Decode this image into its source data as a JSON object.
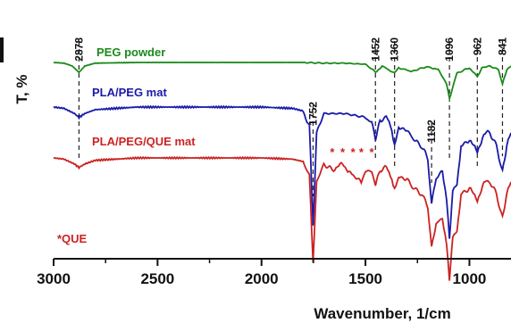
{
  "chart_data": {
    "type": "line",
    "title": "",
    "xlabel": "Wavenumber, 1/cm",
    "ylabel": "T, %",
    "xlim": [
      3000,
      800
    ],
    "x_reversed": true,
    "y_ticks_shown": false,
    "grid": false,
    "x_ticks": [
      3000,
      2500,
      2000,
      1500,
      1000
    ],
    "x_tick_labels": [
      "3000",
      "2500",
      "2000",
      "1500",
      "1000"
    ],
    "peak_markers": [
      {
        "wavenumber": 2878,
        "label": "2878"
      },
      {
        "wavenumber": 1452,
        "label": "1452"
      },
      {
        "wavenumber": 1360,
        "label": "1360"
      },
      {
        "wavenumber": 1096,
        "label": "1096"
      },
      {
        "wavenumber": 962,
        "label": "962"
      },
      {
        "wavenumber": 841,
        "label": "841"
      },
      {
        "wavenumber": 1752,
        "label": "1752"
      },
      {
        "wavenumber": 1182,
        "label": "1182"
      }
    ],
    "series": [
      {
        "name": "PEG powder",
        "color": "#1a8a1a",
        "x": [
          3000,
          2950,
          2910,
          2878,
          2850,
          2800,
          2600,
          2400,
          2200,
          2000,
          1800,
          1700,
          1600,
          1500,
          1470,
          1452,
          1420,
          1360,
          1340,
          1280,
          1240,
          1200,
          1150,
          1110,
          1096,
          1080,
          1060,
          1000,
          962,
          940,
          900,
          860,
          841,
          820,
          800
        ],
        "y": [
          0.0,
          0.02,
          0.1,
          0.28,
          0.1,
          0.02,
          0.0,
          0.0,
          0.0,
          0.0,
          0.0,
          0.02,
          0.02,
          0.05,
          0.18,
          0.28,
          0.1,
          0.3,
          0.15,
          0.25,
          0.18,
          0.12,
          0.2,
          0.6,
          1.0,
          0.7,
          0.3,
          0.15,
          0.4,
          0.15,
          0.1,
          0.2,
          0.6,
          0.2,
          0.1
        ]
      },
      {
        "name": "PLA/PEG mat",
        "color": "#1a1aaa",
        "x": [
          3000,
          2950,
          2900,
          2878,
          2850,
          2800,
          2600,
          2400,
          2200,
          2000,
          1850,
          1800,
          1770,
          1752,
          1735,
          1700,
          1600,
          1500,
          1470,
          1452,
          1430,
          1400,
          1380,
          1360,
          1340,
          1300,
          1270,
          1230,
          1200,
          1182,
          1160,
          1130,
          1110,
          1096,
          1080,
          1060,
          1040,
          1000,
          962,
          930,
          900,
          870,
          841,
          820,
          800
        ],
        "y": [
          0.0,
          0.01,
          0.05,
          0.08,
          0.05,
          0.02,
          0.0,
          0.0,
          0.0,
          0.0,
          0.01,
          0.03,
          0.15,
          0.9,
          0.2,
          0.05,
          0.05,
          0.08,
          0.12,
          0.25,
          0.1,
          0.08,
          0.15,
          0.3,
          0.15,
          0.18,
          0.25,
          0.3,
          0.4,
          0.75,
          0.55,
          0.5,
          0.7,
          1.0,
          0.65,
          0.6,
          0.3,
          0.25,
          0.35,
          0.2,
          0.2,
          0.3,
          0.5,
          0.3,
          0.2
        ]
      },
      {
        "name": "PLA/PEG/QUE mat",
        "color": "#cc2222",
        "x": [
          3000,
          2950,
          2900,
          2878,
          2850,
          2800,
          2600,
          2400,
          2200,
          2000,
          1850,
          1800,
          1770,
          1752,
          1735,
          1700,
          1660,
          1610,
          1560,
          1520,
          1500,
          1470,
          1452,
          1430,
          1400,
          1380,
          1360,
          1340,
          1300,
          1270,
          1230,
          1200,
          1182,
          1160,
          1130,
          1110,
          1096,
          1080,
          1060,
          1040,
          1000,
          962,
          930,
          900,
          870,
          841,
          820,
          800
        ],
        "y": [
          0.0,
          0.01,
          0.05,
          0.08,
          0.05,
          0.02,
          0.0,
          0.0,
          0.0,
          0.0,
          0.01,
          0.03,
          0.15,
          0.85,
          0.2,
          0.05,
          0.1,
          0.05,
          0.15,
          0.2,
          0.1,
          0.12,
          0.22,
          0.1,
          0.08,
          0.15,
          0.25,
          0.15,
          0.18,
          0.25,
          0.3,
          0.4,
          0.75,
          0.55,
          0.5,
          0.7,
          1.0,
          0.65,
          0.6,
          0.3,
          0.25,
          0.35,
          0.2,
          0.2,
          0.3,
          0.5,
          0.3,
          0.2
        ]
      }
    ],
    "annotations": [
      {
        "text": "*QUE",
        "color": "#cc2222"
      },
      {
        "text": "*",
        "color": "#cc2222",
        "wavenumber": 1660,
        "series": "PLA/PEG/QUE mat"
      },
      {
        "text": "*",
        "color": "#cc2222",
        "wavenumber": 1610,
        "series": "PLA/PEG/QUE mat"
      },
      {
        "text": "*",
        "color": "#cc2222",
        "wavenumber": 1560,
        "series": "PLA/PEG/QUE mat"
      },
      {
        "text": "*",
        "color": "#cc2222",
        "wavenumber": 1520,
        "series": "PLA/PEG/QUE mat"
      },
      {
        "text": "*",
        "color": "#cc2222",
        "wavenumber": 1470,
        "series": "PLA/PEG/QUE mat"
      }
    ]
  }
}
